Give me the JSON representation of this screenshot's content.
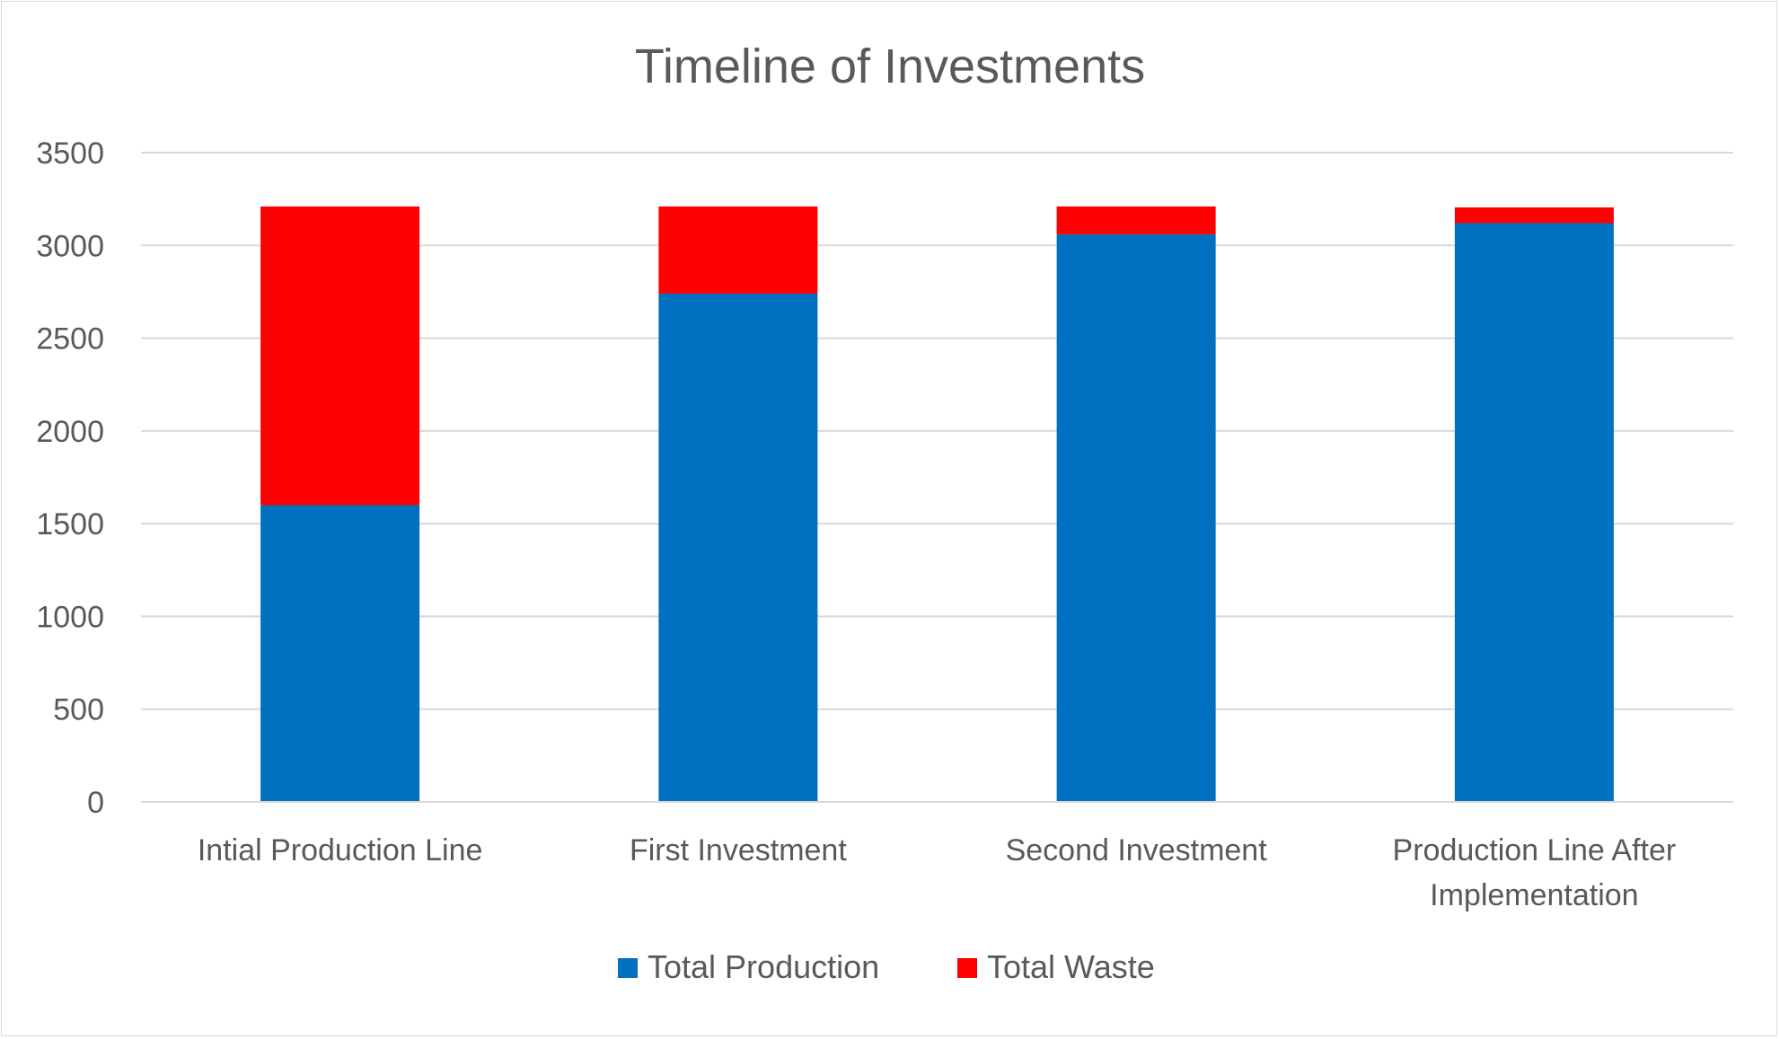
{
  "chart_data": {
    "type": "bar",
    "stacked": true,
    "title": "Timeline of Investments",
    "xlabel": "",
    "ylabel": "",
    "categories": [
      [
        "Intial Production Line"
      ],
      [
        "First Investment"
      ],
      [
        "Second Investment"
      ],
      [
        "Production Line After",
        "Implementation"
      ]
    ],
    "series": [
      {
        "name": "Total Production",
        "color": "#0070C0",
        "values": [
          1600,
          2740,
          3060,
          3120
        ]
      },
      {
        "name": "Total Waste",
        "color": "#FF0000",
        "values": [
          1610,
          470,
          150,
          85
        ]
      }
    ],
    "ylim": [
      0,
      3500
    ],
    "yticks": [
      0,
      500,
      1000,
      1500,
      2000,
      2500,
      3000,
      3500
    ],
    "grid": true,
    "legend_position": "bottom"
  }
}
